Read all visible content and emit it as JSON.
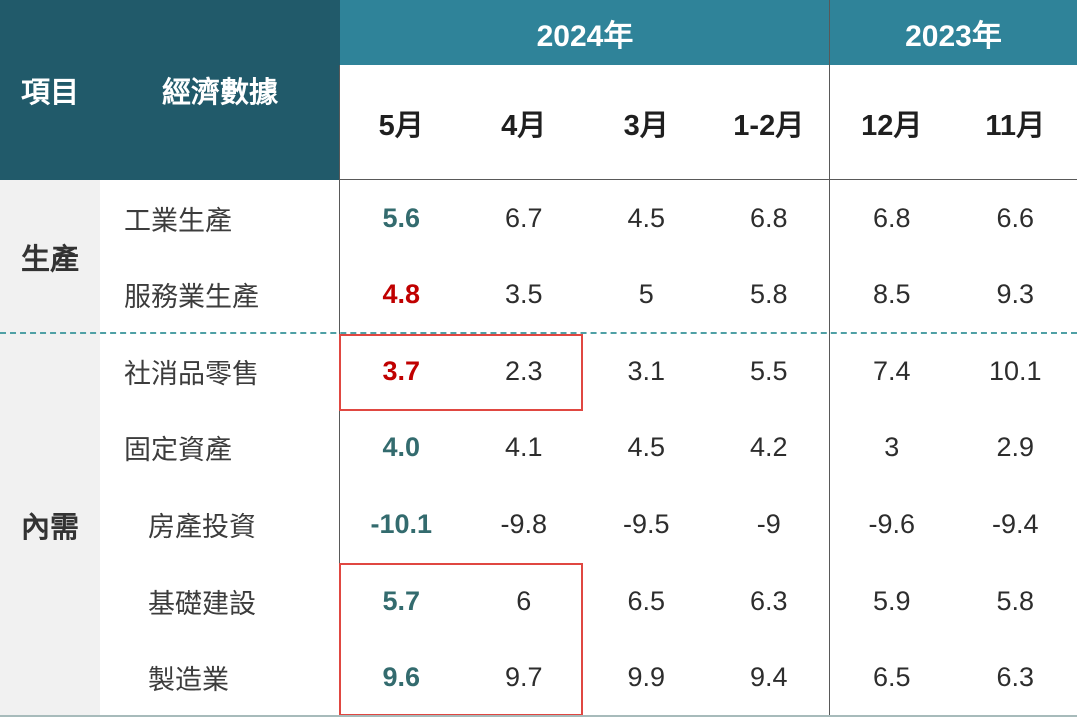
{
  "header": {
    "item_label": "項目",
    "indicator_label": "經濟數據",
    "years": [
      {
        "label": "2024年",
        "months": [
          "5月",
          "4月",
          "3月",
          "1-2月"
        ]
      },
      {
        "label": "2023年",
        "months": [
          "12月",
          "11月"
        ]
      }
    ]
  },
  "groups": [
    {
      "label": "生產"
    },
    {
      "label": "內需"
    }
  ],
  "rows": [
    {
      "label": "工業生產",
      "cells": [
        {
          "v": "5.6",
          "cls": "v teal"
        },
        {
          "v": "6.7",
          "cls": "v"
        },
        {
          "v": "4.5",
          "cls": "v"
        },
        {
          "v": "6.8",
          "cls": "v"
        },
        {
          "v": "6.8",
          "cls": "v"
        },
        {
          "v": "6.6",
          "cls": "v"
        }
      ]
    },
    {
      "label": "服務業生產",
      "cells": [
        {
          "v": "4.8",
          "cls": "v red"
        },
        {
          "v": "3.5",
          "cls": "v"
        },
        {
          "v": "5",
          "cls": "v"
        },
        {
          "v": "5.8",
          "cls": "v"
        },
        {
          "v": "8.5",
          "cls": "v"
        },
        {
          "v": "9.3",
          "cls": "v"
        }
      ]
    },
    {
      "label": "社消品零售",
      "cells": [
        {
          "v": "3.7",
          "cls": "v red"
        },
        {
          "v": "2.3",
          "cls": "v"
        },
        {
          "v": "3.1",
          "cls": "v"
        },
        {
          "v": "5.5",
          "cls": "v"
        },
        {
          "v": "7.4",
          "cls": "v"
        },
        {
          "v": "10.1",
          "cls": "v"
        }
      ]
    },
    {
      "label": "固定資產",
      "cells": [
        {
          "v": "4.0",
          "cls": "v teal"
        },
        {
          "v": "4.1",
          "cls": "v"
        },
        {
          "v": "4.5",
          "cls": "v"
        },
        {
          "v": "4.2",
          "cls": "v"
        },
        {
          "v": "3",
          "cls": "v"
        },
        {
          "v": "2.9",
          "cls": "v"
        }
      ]
    },
    {
      "label": "房產投資",
      "cells": [
        {
          "v": "-10.1",
          "cls": "v teal"
        },
        {
          "v": "-9.8",
          "cls": "v"
        },
        {
          "v": "-9.5",
          "cls": "v"
        },
        {
          "v": "-9",
          "cls": "v"
        },
        {
          "v": "-9.6",
          "cls": "v"
        },
        {
          "v": "-9.4",
          "cls": "v"
        }
      ]
    },
    {
      "label": "基礎建設",
      "cells": [
        {
          "v": "5.7",
          "cls": "v teal"
        },
        {
          "v": "6",
          "cls": "v"
        },
        {
          "v": "6.5",
          "cls": "v"
        },
        {
          "v": "6.3",
          "cls": "v"
        },
        {
          "v": "5.9",
          "cls": "v"
        },
        {
          "v": "5.8",
          "cls": "v"
        }
      ]
    },
    {
      "label": "製造業",
      "cells": [
        {
          "v": "9.6",
          "cls": "v teal"
        },
        {
          "v": "9.7",
          "cls": "v"
        },
        {
          "v": "9.9",
          "cls": "v"
        },
        {
          "v": "9.4",
          "cls": "v"
        },
        {
          "v": "6.5",
          "cls": "v"
        },
        {
          "v": "6.3",
          "cls": "v"
        }
      ]
    }
  ],
  "chart_data": {
    "type": "table",
    "title": "",
    "column_header_left": [
      "項目",
      "經濟數據"
    ],
    "column_groups": [
      {
        "label": "2024年",
        "columns": [
          "5月",
          "4月",
          "3月",
          "1-2月"
        ]
      },
      {
        "label": "2023年",
        "columns": [
          "12月",
          "11月"
        ]
      }
    ],
    "row_groups": [
      {
        "label": "生產",
        "rows": [
          "工業生產",
          "服務業生產"
        ]
      },
      {
        "label": "內需",
        "rows": [
          "社消品零售",
          "固定資產",
          "房產投資",
          "基礎建設",
          "製造業"
        ]
      }
    ],
    "rows": [
      {
        "group": "生產",
        "label": "工業生產",
        "values": [
          5.6,
          6.7,
          4.5,
          6.8,
          6.8,
          6.6
        ]
      },
      {
        "group": "生產",
        "label": "服務業生產",
        "values": [
          4.8,
          3.5,
          5,
          5.8,
          8.5,
          9.3
        ]
      },
      {
        "group": "內需",
        "label": "社消品零售",
        "values": [
          3.7,
          2.3,
          3.1,
          5.5,
          7.4,
          10.1
        ]
      },
      {
        "group": "內需",
        "label": "固定資產",
        "values": [
          4.0,
          4.1,
          4.5,
          4.2,
          3,
          2.9
        ]
      },
      {
        "group": "內需",
        "label": "房產投資",
        "values": [
          -10.1,
          -9.8,
          -9.5,
          -9,
          -9.6,
          -9.4
        ]
      },
      {
        "group": "內需",
        "label": "基礎建設",
        "values": [
          5.7,
          6,
          6.5,
          6.3,
          5.9,
          5.8
        ]
      },
      {
        "group": "內需",
        "label": "製造業",
        "values": [
          9.6,
          9.7,
          9.9,
          9.4,
          6.5,
          6.3
        ]
      }
    ],
    "highlights": [
      {
        "rows": [
          "社消品零售"
        ],
        "columns": [
          "5月",
          "4月"
        ],
        "style": "red-outline"
      },
      {
        "rows": [
          "基礎建設",
          "製造業"
        ],
        "columns": [
          "5月",
          "4月"
        ],
        "style": "red-outline"
      }
    ]
  },
  "colors": {
    "corner_header_bg": "#215A6A",
    "year_band_bg": "#2F8399",
    "accent_teal_text": "#336B6E",
    "accent_red_text": "#C00000",
    "highlight_border": "#E04741",
    "dashed_separator": "#4FA0A5",
    "group_column_bg": "#F1F1F1",
    "grid_line": "#595959",
    "bottom_border": "#A7BBBB"
  }
}
